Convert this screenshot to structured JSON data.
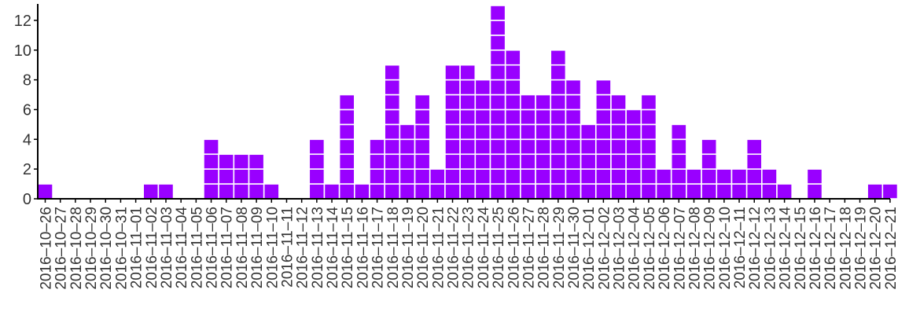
{
  "chart_data": {
    "type": "bar",
    "style": "stacked unit squares (one square per count)",
    "title": "",
    "xlabel": "",
    "ylabel": "",
    "ylim": [
      0,
      13
    ],
    "yticks": [
      0,
      2,
      4,
      6,
      8,
      10,
      12
    ],
    "grid": false,
    "legend": "none",
    "bar_color": "#9900FF",
    "categories": [
      "2016–10–26",
      "2016–10–27",
      "2016–10–28",
      "2016–10–29",
      "2016–10–30",
      "2016–10–31",
      "2016–11–01",
      "2016–11–02",
      "2016–11–03",
      "2016–11–04",
      "2016–11–05",
      "2016–11–06",
      "2016–11–07",
      "2016–11–08",
      "2016–11–09",
      "2016–11–10",
      "2016–11–11",
      "2016–11–12",
      "2016–11–13",
      "2016–11–14",
      "2016–11–15",
      "2016–11–16",
      "2016–11–17",
      "2016–11–18",
      "2016–11–19",
      "2016–11–20",
      "2016–11–21",
      "2016–11–22",
      "2016–11–23",
      "2016–11–24",
      "2016–11–25",
      "2016–11–26",
      "2016–11–27",
      "2016–11–28",
      "2016–11–29",
      "2016–11–30",
      "2016–12–01",
      "2016–12–02",
      "2016–12–03",
      "2016–12–04",
      "2016–12–05",
      "2016–12–06",
      "2016–12–07",
      "2016–12–08",
      "2016–12–09",
      "2016–12–10",
      "2016–12–11",
      "2016–12–12",
      "2016–12–13",
      "2016–12–14",
      "2016–12–15",
      "2016–12–16",
      "2016–12–17",
      "2016–12–18",
      "2016–12–19",
      "2016–12–20",
      "2016–12–21"
    ],
    "values": [
      1,
      0,
      0,
      0,
      0,
      0,
      0,
      1,
      1,
      0,
      0,
      4,
      3,
      3,
      3,
      1,
      0,
      0,
      4,
      1,
      7,
      1,
      4,
      9,
      5,
      7,
      2,
      9,
      9,
      8,
      13,
      10,
      7,
      7,
      10,
      8,
      5,
      8,
      7,
      6,
      7,
      2,
      5,
      2,
      4,
      2,
      2,
      4,
      2,
      1,
      0,
      2,
      0,
      0,
      0,
      1,
      1
    ]
  }
}
